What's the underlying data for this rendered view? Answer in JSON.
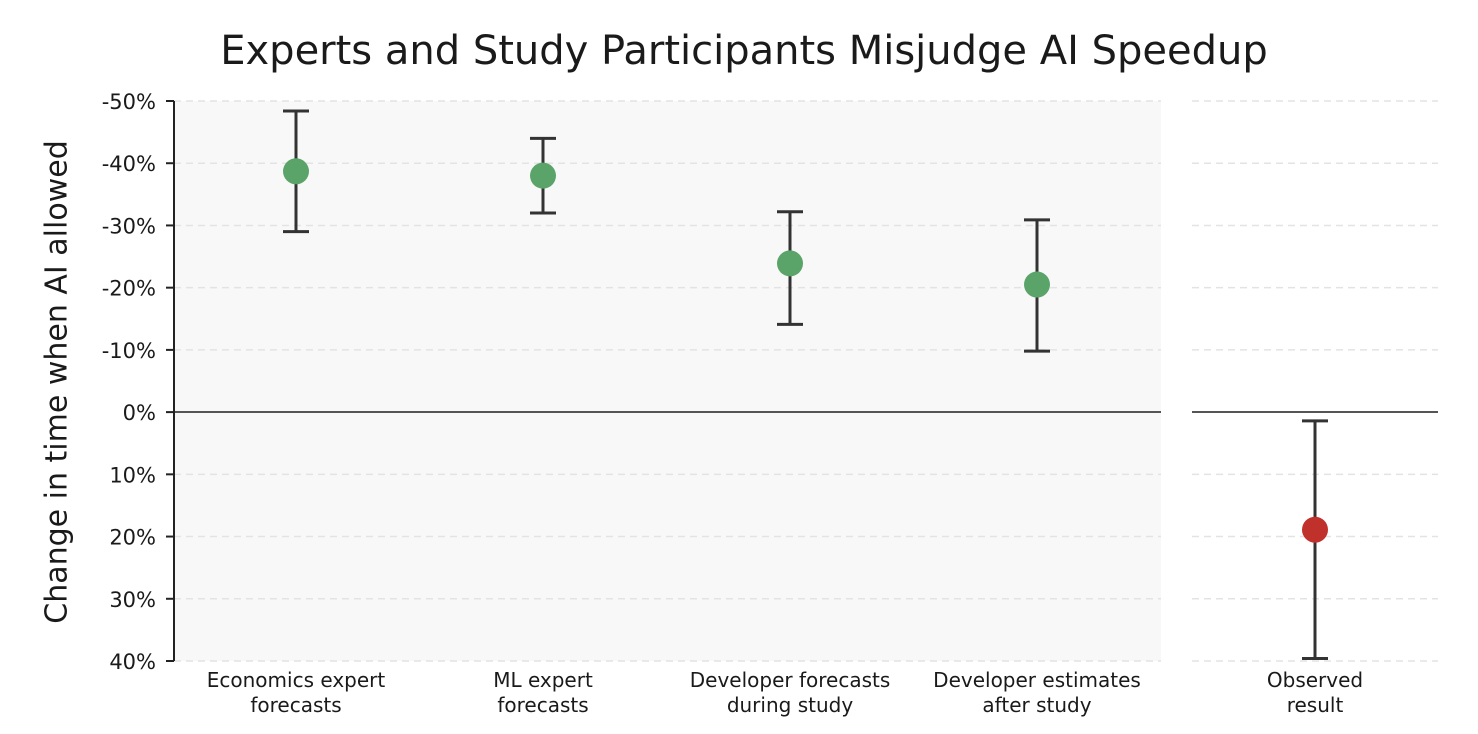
{
  "chart_data": {
    "type": "scatter",
    "title": "Experts and Study Participants Misjudge AI Speedup",
    "ylabel": "Change in time when AI allowed",
    "xlabel": "",
    "yaxis": {
      "range": [
        -50,
        40
      ],
      "inverted": true,
      "unit": "%",
      "ticks": [
        -50,
        -40,
        -30,
        -20,
        -10,
        0,
        10,
        20,
        30,
        40
      ],
      "tick_labels": [
        "-50%",
        "-40%",
        "-30%",
        "-20%",
        "-10%",
        "0%",
        "10%",
        "20%",
        "30%",
        "40%"
      ]
    },
    "grid": true,
    "panels": [
      {
        "name": "forecasts",
        "background": "#f8f8f8",
        "points": [
          {
            "label": [
              "Economics expert",
              "forecasts"
            ],
            "value": -38.7,
            "ci": [
              -48.4,
              -29.0
            ],
            "color": "#5aa469"
          },
          {
            "label": [
              "ML expert",
              "forecasts"
            ],
            "value": -38.0,
            "ci": [
              -44.0,
              -32.0
            ],
            "color": "#5aa469"
          },
          {
            "label": [
              "Developer forecasts",
              "during study"
            ],
            "value": -23.9,
            "ci": [
              -32.2,
              -14.1
            ],
            "color": "#5aa469"
          },
          {
            "label": [
              "Developer estimates",
              "after study"
            ],
            "value": -20.5,
            "ci": [
              -30.9,
              -9.8
            ],
            "color": "#5aa469"
          }
        ]
      },
      {
        "name": "observed",
        "background": "#ffffff",
        "points": [
          {
            "label": [
              "Observed",
              "result"
            ],
            "value": 18.9,
            "ci": [
              1.4,
              39.6
            ],
            "color": "#c0312b"
          }
        ]
      }
    ]
  }
}
